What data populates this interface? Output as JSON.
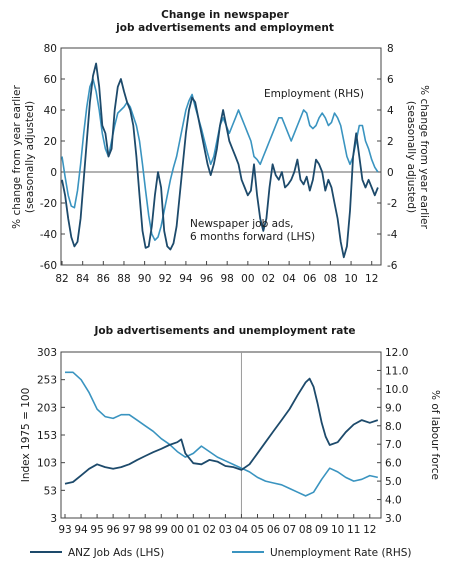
{
  "chart_data": [
    {
      "type": "line",
      "title": [
        "Change in newspaper",
        "job advertisements and employment"
      ],
      "ylabel_left": [
        "% change from year earlier",
        "(seasonally adjusted)"
      ],
      "ylabel_right": [
        "% change from year earlier",
        "(seasonally adjusted)"
      ],
      "xticks": [
        "82",
        "84",
        "86",
        "88",
        "90",
        "92",
        "94",
        "96",
        "98",
        "00",
        "02",
        "04",
        "06",
        "08",
        "10",
        "12"
      ],
      "x_range": [
        1981.9,
        2012.9
      ],
      "ylim_left": [
        -60,
        80
      ],
      "ylim_right": [
        -6,
        8
      ],
      "yticks_left": [
        -60,
        -40,
        -20,
        0,
        20,
        40,
        60,
        80
      ],
      "yticks_right": [
        -6,
        -4,
        -2,
        0,
        2,
        4,
        6,
        8
      ],
      "grid": false,
      "zero_line": true,
      "annotations": [
        "Employment (RHS)",
        "Newspaper job ads,",
        "6 months forward (LHS)"
      ],
      "colors": {
        "job_ads": "#1d4a6b",
        "employment": "#3a94c0"
      },
      "series": [
        {
          "id": "job_ads",
          "label": [
            "Newspaper job ads,",
            "6 months forward (LHS)"
          ],
          "axis": "left",
          "x": [
            1982.0,
            1982.3,
            1982.6,
            1982.9,
            1983.2,
            1983.5,
            1983.8,
            1984.1,
            1984.4,
            1984.7,
            1985.0,
            1985.3,
            1985.6,
            1985.9,
            1986.2,
            1986.5,
            1986.8,
            1987.1,
            1987.4,
            1987.7,
            1988.0,
            1988.3,
            1988.6,
            1988.9,
            1989.2,
            1989.5,
            1989.8,
            1990.1,
            1990.4,
            1990.7,
            1991.0,
            1991.3,
            1991.6,
            1991.9,
            1992.2,
            1992.5,
            1992.8,
            1993.1,
            1993.4,
            1993.7,
            1994.0,
            1994.3,
            1994.6,
            1994.9,
            1995.2,
            1995.5,
            1995.8,
            1996.1,
            1996.4,
            1996.7,
            1997.0,
            1997.3,
            1997.6,
            1997.9,
            1998.2,
            1998.5,
            1998.8,
            1999.1,
            1999.4,
            1999.7,
            2000.0,
            2000.3,
            2000.6,
            2000.9,
            2001.2,
            2001.5,
            2001.8,
            2002.1,
            2002.4,
            2002.7,
            2003.0,
            2003.3,
            2003.6,
            2003.9,
            2004.2,
            2004.5,
            2004.8,
            2005.1,
            2005.4,
            2005.7,
            2006.0,
            2006.3,
            2006.6,
            2006.9,
            2007.2,
            2007.5,
            2007.8,
            2008.1,
            2008.4,
            2008.7,
            2009.0,
            2009.3,
            2009.6,
            2009.9,
            2010.2,
            2010.5,
            2010.8,
            2011.1,
            2011.4,
            2011.7,
            2012.0,
            2012.3,
            2012.6
          ],
          "y": [
            -5,
            -15,
            -30,
            -42,
            -48,
            -45,
            -30,
            -5,
            20,
            45,
            62,
            70,
            55,
            30,
            25,
            10,
            15,
            40,
            55,
            60,
            52,
            45,
            40,
            30,
            10,
            -15,
            -38,
            -49,
            -48,
            -35,
            -15,
            0,
            -10,
            -38,
            -48,
            -50,
            -46,
            -35,
            -15,
            5,
            25,
            40,
            48,
            45,
            35,
            25,
            15,
            5,
            -2,
            5,
            15,
            30,
            40,
            30,
            20,
            15,
            10,
            5,
            -5,
            -10,
            -15,
            -12,
            5,
            -15,
            -30,
            -38,
            -30,
            -10,
            5,
            -2,
            -5,
            0,
            -10,
            -8,
            -5,
            0,
            8,
            -5,
            -8,
            -3,
            -12,
            -5,
            8,
            5,
            0,
            -12,
            -5,
            -10,
            -20,
            -30,
            -45,
            -55,
            -48,
            -25,
            10,
            25,
            10,
            -5,
            -10,
            -5,
            -10,
            -15,
            -10
          ]
        },
        {
          "id": "employment",
          "label": "Employment (RHS)",
          "axis": "right",
          "x": [
            1982.0,
            1982.3,
            1982.6,
            1982.9,
            1983.2,
            1983.5,
            1983.8,
            1984.1,
            1984.4,
            1984.7,
            1985.0,
            1985.3,
            1985.6,
            1985.9,
            1986.2,
            1986.5,
            1986.8,
            1987.1,
            1987.4,
            1987.7,
            1988.0,
            1988.3,
            1988.6,
            1988.9,
            1989.2,
            1989.5,
            1989.8,
            1990.1,
            1990.4,
            1990.7,
            1991.0,
            1991.3,
            1991.6,
            1991.9,
            1992.2,
            1992.5,
            1992.8,
            1993.1,
            1993.4,
            1993.7,
            1994.0,
            1994.3,
            1994.6,
            1994.9,
            1995.2,
            1995.5,
            1995.8,
            1996.1,
            1996.4,
            1996.7,
            1997.0,
            1997.3,
            1997.6,
            1997.9,
            1998.2,
            1998.5,
            1998.8,
            1999.1,
            1999.4,
            1999.7,
            2000.0,
            2000.3,
            2000.6,
            2000.9,
            2001.2,
            2001.5,
            2001.8,
            2002.1,
            2002.4,
            2002.7,
            2003.0,
            2003.3,
            2003.6,
            2003.9,
            2004.2,
            2004.5,
            2004.8,
            2005.1,
            2005.4,
            2005.7,
            2006.0,
            2006.3,
            2006.6,
            2006.9,
            2007.2,
            2007.5,
            2007.8,
            2008.1,
            2008.4,
            2008.7,
            2009.0,
            2009.3,
            2009.6,
            2009.9,
            2010.2,
            2010.5,
            2010.8,
            2011.1,
            2011.4,
            2011.7,
            2012.0,
            2012.3,
            2012.6
          ],
          "y": [
            1.0,
            -0.3,
            -1.5,
            -2.2,
            -2.3,
            -1.2,
            0.5,
            2.5,
            4.2,
            5.5,
            6.0,
            5.2,
            4.0,
            2.5,
            1.5,
            1.0,
            2.0,
            3.0,
            3.8,
            4.0,
            4.2,
            4.5,
            4.2,
            3.6,
            3.0,
            2.0,
            0.5,
            -1.2,
            -2.8,
            -4.0,
            -4.4,
            -4.2,
            -3.5,
            -2.5,
            -1.5,
            -0.5,
            0.3,
            1.0,
            2.0,
            3.0,
            4.0,
            4.6,
            5.0,
            4.2,
            3.5,
            2.8,
            2.0,
            1.2,
            0.5,
            1.0,
            2.0,
            3.0,
            3.5,
            3.0,
            2.5,
            3.0,
            3.5,
            4.0,
            3.5,
            3.0,
            2.5,
            2.0,
            1.0,
            0.8,
            0.5,
            1.0,
            1.5,
            2.0,
            2.5,
            3.0,
            3.5,
            3.5,
            3.0,
            2.5,
            2.0,
            2.5,
            3.0,
            3.5,
            4.0,
            3.8,
            3.0,
            2.8,
            3.0,
            3.5,
            3.8,
            3.5,
            3.0,
            3.2,
            3.8,
            3.5,
            3.0,
            2.0,
            1.0,
            0.5,
            1.0,
            2.0,
            3.0,
            3.0,
            2.0,
            1.5,
            0.8,
            0.3,
            0.0
          ]
        }
      ]
    },
    {
      "type": "line",
      "title": "Job advertisements and unemployment rate",
      "ylabel_left": "Index 1975 = 100",
      "ylabel_right": "% of labour force",
      "xticks": [
        "93",
        "94",
        "95",
        "96",
        "97",
        "98",
        "99",
        "00",
        "01",
        "02",
        "03",
        "04",
        "05",
        "06",
        "07",
        "08",
        "09",
        "10",
        "11",
        "12"
      ],
      "x_range": [
        1992.75,
        2012.7
      ],
      "ylim_left": [
        3,
        303
      ],
      "ylim_right": [
        3.0,
        12.0
      ],
      "yticks_left": [
        "3",
        "53",
        "103",
        "153",
        "203",
        "253",
        "303"
      ],
      "yticks_right": [
        "3.0",
        "4.0",
        "5.0",
        "6.0",
        "7.0",
        "8.0",
        "9.0",
        "10.0",
        "11.0",
        "12.0"
      ],
      "vertical_marker_x": 2004.0,
      "grid": false,
      "legend_position": "bottom",
      "colors": {
        "job_ads": "#1d4a6b",
        "unemployment": "#3a94c0",
        "marker": "#9a9a9a"
      },
      "series": [
        {
          "id": "job_ads",
          "name": "ANZ Job Ads (LHS)",
          "axis": "left",
          "x": [
            1993.0,
            1993.5,
            1994.0,
            1994.5,
            1995.0,
            1995.5,
            1996.0,
            1996.5,
            1997.0,
            1997.5,
            1998.0,
            1998.5,
            1999.0,
            1999.5,
            2000.0,
            2000.25,
            2000.5,
            2001.0,
            2001.5,
            2002.0,
            2002.5,
            2003.0,
            2003.5,
            2004.0,
            2004.5,
            2005.0,
            2005.5,
            2006.0,
            2006.5,
            2007.0,
            2007.5,
            2008.0,
            2008.25,
            2008.5,
            2008.75,
            2009.0,
            2009.25,
            2009.5,
            2010.0,
            2010.5,
            2011.0,
            2011.5,
            2012.0,
            2012.5
          ],
          "y": [
            65,
            68,
            80,
            92,
            100,
            95,
            92,
            95,
            100,
            108,
            115,
            122,
            128,
            135,
            140,
            145,
            120,
            102,
            100,
            108,
            105,
            97,
            95,
            90,
            100,
            120,
            140,
            160,
            180,
            200,
            225,
            248,
            255,
            240,
            210,
            175,
            150,
            135,
            140,
            158,
            172,
            180,
            175,
            180
          ]
        },
        {
          "id": "unemployment",
          "name": "Unemployment Rate (RHS)",
          "axis": "right",
          "x": [
            1993.0,
            1993.5,
            1994.0,
            1994.5,
            1995.0,
            1995.5,
            1996.0,
            1996.5,
            1997.0,
            1997.5,
            1998.0,
            1998.5,
            1999.0,
            1999.5,
            2000.0,
            2000.5,
            2001.0,
            2001.5,
            2002.0,
            2002.5,
            2003.0,
            2003.5,
            2004.0,
            2004.5,
            2005.0,
            2005.5,
            2006.0,
            2006.5,
            2007.0,
            2007.5,
            2008.0,
            2008.5,
            2009.0,
            2009.5,
            2010.0,
            2010.5,
            2011.0,
            2011.5,
            2012.0,
            2012.5
          ],
          "y": [
            10.9,
            10.9,
            10.5,
            9.8,
            8.9,
            8.5,
            8.4,
            8.6,
            8.6,
            8.3,
            8.0,
            7.7,
            7.3,
            7.0,
            6.6,
            6.3,
            6.5,
            6.9,
            6.6,
            6.3,
            6.1,
            5.9,
            5.7,
            5.5,
            5.2,
            5.0,
            4.9,
            4.8,
            4.6,
            4.4,
            4.2,
            4.4,
            5.1,
            5.7,
            5.5,
            5.2,
            5.0,
            5.1,
            5.3,
            5.2
          ]
        }
      ],
      "legend": [
        "ANZ Job Ads (LHS)",
        "Unemployment Rate (RHS)"
      ]
    }
  ]
}
